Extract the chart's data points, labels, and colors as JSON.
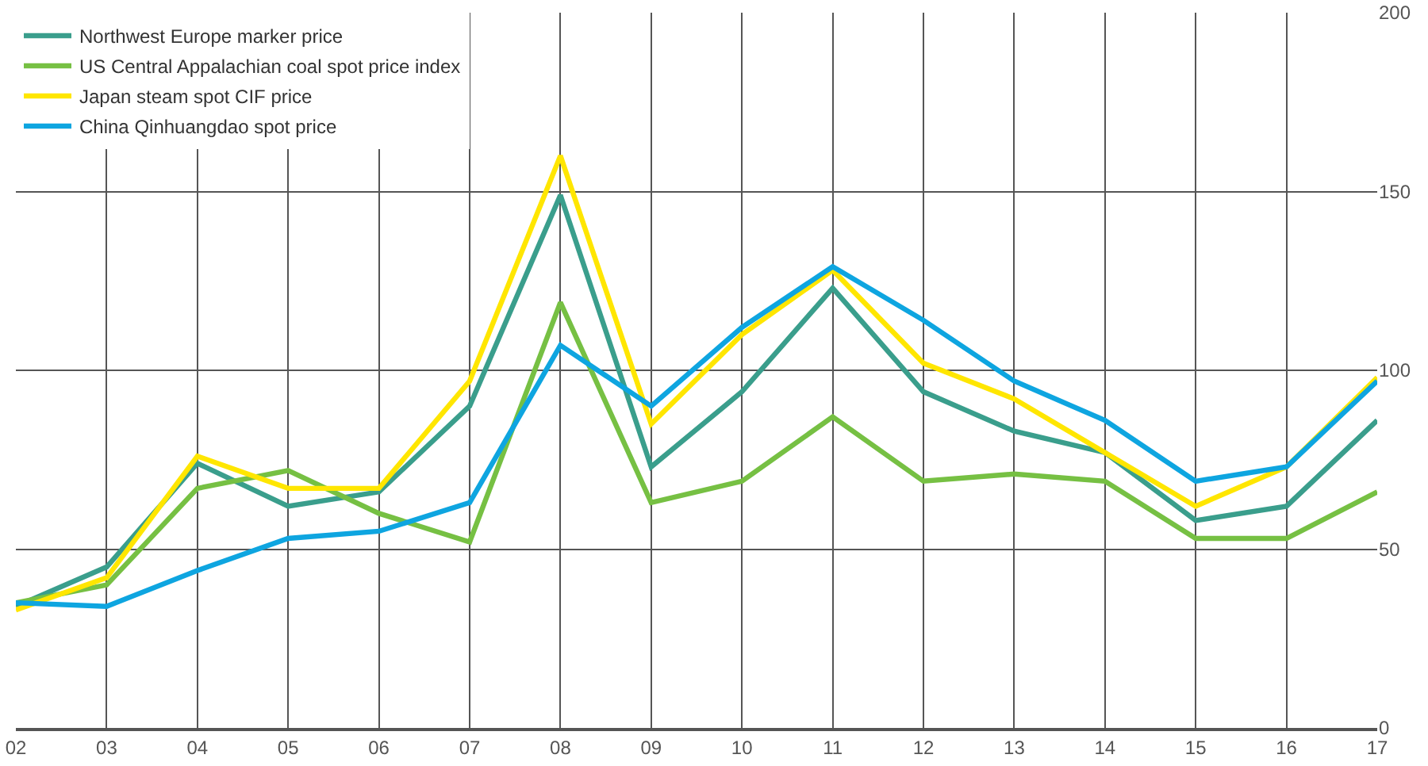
{
  "chart_data": {
    "type": "line",
    "categories": [
      "02",
      "03",
      "04",
      "05",
      "06",
      "07",
      "08",
      "09",
      "10",
      "11",
      "12",
      "13",
      "14",
      "15",
      "16",
      "17"
    ],
    "series": [
      {
        "name": "Northwest Europe marker price",
        "color": "#3a9e8c",
        "values": [
          34,
          45,
          74,
          62,
          66,
          90,
          149,
          73,
          94,
          123,
          94,
          83,
          77,
          58,
          62,
          86
        ]
      },
      {
        "name": "US Central Appalachian coal spot price index",
        "color": "#76c043",
        "values": [
          35,
          40,
          67,
          72,
          60,
          52,
          119,
          63,
          69,
          87,
          69,
          71,
          69,
          53,
          53,
          66
        ]
      },
      {
        "name": "Japan steam spot CIF price",
        "color": "#ffe600",
        "values": [
          33,
          42,
          76,
          67,
          67,
          97,
          160,
          85,
          110,
          128,
          102,
          92,
          77,
          62,
          73,
          98
        ]
      },
      {
        "name": "China Qinhuangdao spot price",
        "color": "#0ea5e0",
        "values": [
          35,
          34,
          44,
          53,
          55,
          63,
          107,
          90,
          112,
          129,
          114,
          97,
          86,
          69,
          73,
          97
        ]
      }
    ],
    "ylim": [
      0,
      200
    ],
    "yticks": [
      0,
      50,
      100,
      150,
      200
    ],
    "grid": true,
    "legend": "top left",
    "marker": "none",
    "line_style": "solid"
  }
}
